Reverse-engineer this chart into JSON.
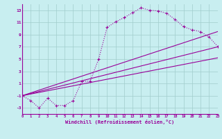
{
  "background_color": "#c8eef0",
  "grid_color": "#a0cccc",
  "line_color": "#990099",
  "marker": "+",
  "xlabel": "Windchill (Refroidissement éolien,°C)",
  "xlim": [
    0,
    23
  ],
  "ylim": [
    -4,
    14
  ],
  "xticks": [
    0,
    1,
    2,
    3,
    4,
    5,
    6,
    7,
    8,
    9,
    10,
    11,
    12,
    13,
    14,
    15,
    16,
    17,
    18,
    19,
    20,
    21,
    22,
    23
  ],
  "yticks": [
    -3,
    -1,
    1,
    3,
    5,
    7,
    9,
    11,
    13
  ],
  "series1_x": [
    0,
    1,
    2,
    3,
    4,
    5,
    6,
    7,
    8,
    9,
    10,
    11,
    12,
    13,
    14,
    15,
    16,
    17,
    18,
    19,
    20,
    21,
    22,
    23
  ],
  "series1_y": [
    -1,
    -1.8,
    -3,
    -1.4,
    -2.6,
    -2.6,
    -1.8,
    1.3,
    1.4,
    5.0,
    10.2,
    11.1,
    11.8,
    12.6,
    13.4,
    13.0,
    12.9,
    12.5,
    11.5,
    10.3,
    9.8,
    9.5,
    8.6,
    7.1
  ],
  "series2_x": [
    0,
    23
  ],
  "series2_y": [
    -1,
    7.0
  ],
  "series3_x": [
    0,
    23
  ],
  "series3_y": [
    -1,
    9.5
  ],
  "series4_x": [
    0,
    23
  ],
  "series4_y": [
    -1,
    5.2
  ]
}
